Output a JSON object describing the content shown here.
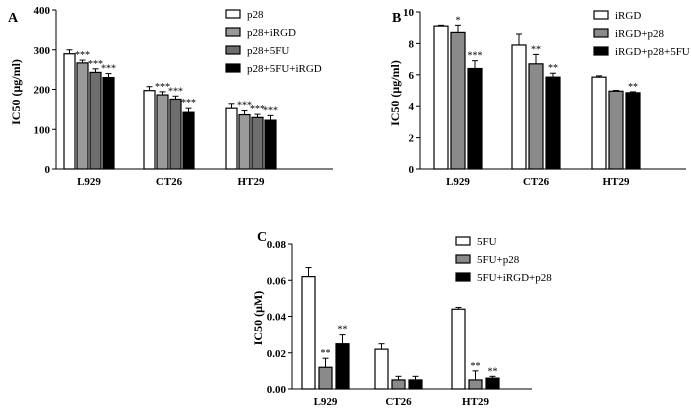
{
  "figure": {
    "panels": [
      {
        "id": "A",
        "label": "A",
        "ylabel": "IC50 (μg/ml)",
        "yticks": [
          "0",
          "100",
          "200",
          "300",
          "400"
        ],
        "series_fills": [
          "#ffffff",
          "#9a9a9a",
          "#6e6e6e",
          "#000000"
        ],
        "significance": [
          [
            "",
            "***",
            "***",
            "***"
          ],
          [
            "",
            "***",
            "***",
            "***"
          ],
          [
            "",
            "***",
            "***",
            "***"
          ]
        ],
        "errors": [
          [
            10,
            7,
            9,
            10
          ],
          [
            10,
            8,
            8,
            10
          ],
          [
            11,
            10,
            8,
            12
          ]
        ]
      },
      {
        "id": "B",
        "label": "B",
        "ylabel": "IC50 (μg/ml)",
        "yticks": [
          "0",
          "2",
          "4",
          "6",
          "8",
          "10"
        ],
        "series_fills": [
          "#ffffff",
          "#8a8a8a",
          "#000000"
        ],
        "significance": [
          [
            "",
            "*",
            "***"
          ],
          [
            "",
            "**",
            "**"
          ],
          [
            "",
            "",
            "**"
          ]
        ],
        "errors": [
          [
            0.05,
            0.45,
            0.5
          ],
          [
            0.7,
            0.6,
            0.25
          ],
          [
            0.08,
            0.05,
            0.06
          ]
        ]
      },
      {
        "id": "C",
        "label": "C",
        "ylabel": "IC50 (μM)",
        "yticks": [
          "0.00",
          "0.02",
          "0.04",
          "0.06",
          "0.08"
        ],
        "series_fills": [
          "#ffffff",
          "#8a8a8a",
          "#000000"
        ],
        "significance": [
          [
            "",
            "**",
            "**"
          ],
          [
            "",
            "",
            ""
          ],
          [
            "",
            "**",
            "**"
          ]
        ],
        "errors": [
          [
            0.005,
            0.005,
            0.005
          ],
          [
            0.003,
            0.002,
            0.002
          ],
          [
            0.001,
            0.005,
            0.001
          ]
        ]
      }
    ]
  },
  "chart_data": [
    {
      "type": "bar",
      "title": "",
      "xlabel": "",
      "ylabel": "IC50 (μg/ml)",
      "ylim": [
        0,
        400
      ],
      "categories": [
        "L929",
        "CT26",
        "HT29"
      ],
      "legend_position": "top-right",
      "grid": false,
      "series": [
        {
          "name": "p28",
          "values": [
            290,
            197,
            153
          ]
        },
        {
          "name": "p28+iRGD",
          "values": [
            267,
            186,
            137
          ]
        },
        {
          "name": "p28+5FU",
          "values": [
            243,
            175,
            130
          ]
        },
        {
          "name": "p28+5FU+iRGD",
          "values": [
            230,
            143,
            123
          ]
        }
      ]
    },
    {
      "type": "bar",
      "title": "",
      "xlabel": "",
      "ylabel": "IC50 (μg/ml)",
      "ylim": [
        0,
        10
      ],
      "categories": [
        "L929",
        "CT26",
        "HT29"
      ],
      "legend_position": "top-right",
      "grid": false,
      "series": [
        {
          "name": "iRGD",
          "values": [
            9.1,
            7.9,
            5.85
          ]
        },
        {
          "name": "iRGD+p28",
          "values": [
            8.7,
            6.7,
            4.95
          ]
        },
        {
          "name": "iRGD+p28+5FU",
          "values": [
            6.4,
            5.85,
            4.85
          ]
        }
      ]
    },
    {
      "type": "bar",
      "title": "",
      "xlabel": "",
      "ylabel": "IC50 (μM)",
      "ylim": [
        0,
        0.08
      ],
      "categories": [
        "L929",
        "CT26",
        "HT29"
      ],
      "legend_position": "top-right",
      "grid": false,
      "series": [
        {
          "name": "5FU",
          "values": [
            0.062,
            0.022,
            0.044
          ]
        },
        {
          "name": "5FU+p28",
          "values": [
            0.012,
            0.005,
            0.005
          ]
        },
        {
          "name": "5FU+iRGD+p28",
          "values": [
            0.025,
            0.005,
            0.006
          ]
        }
      ]
    }
  ]
}
